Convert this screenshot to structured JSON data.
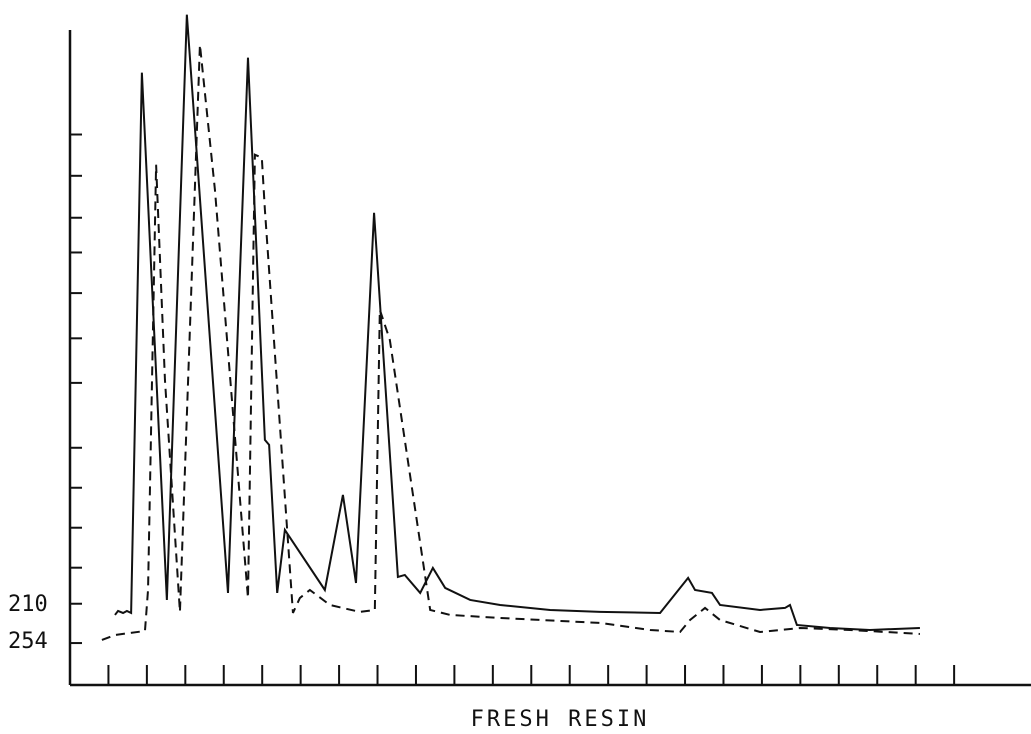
{
  "chart_data": {
    "type": "line",
    "xlabel": "FRESH RESIN",
    "xlim": [
      0,
      25
    ],
    "ylim": [
      0,
      103
    ],
    "xticks": [
      1,
      2,
      3,
      4,
      5,
      6,
      7,
      8,
      9,
      10,
      11,
      12,
      13,
      14,
      15,
      16,
      17,
      18,
      19,
      20,
      21,
      22,
      23
    ],
    "yticks": [
      6.4,
      12.4,
      17.9,
      24.0,
      30.1,
      36.2,
      46.1,
      52.9,
      59.8,
      66.0,
      71.3,
      77.7,
      84.0
    ],
    "series": [
      {
        "name": "210",
        "color": "#111111",
        "dash": false,
        "x": [
          1.17,
          1.25,
          1.38,
          1.48,
          1.59,
          1.87,
          2.52,
          3.04,
          4.11,
          4.63,
          5.07,
          5.18,
          5.39,
          5.59,
          6.63,
          7.1,
          7.44,
          7.91,
          8.53,
          8.71,
          9.11,
          9.44,
          9.76,
          10.41,
          11.19,
          12.49,
          13.79,
          15.35,
          16.08,
          16.26,
          16.7,
          16.91,
          17.95,
          18.6,
          18.73,
          18.91,
          19.77,
          20.81,
          22.11
        ],
        "values": [
          10.69,
          11.3,
          10.99,
          11.3,
          10.99,
          93.44,
          12.98,
          102.29,
          14.05,
          95.73,
          37.4,
          36.64,
          14.05,
          23.66,
          14.5,
          29.01,
          15.57,
          72.06,
          16.49,
          16.79,
          14.05,
          17.86,
          14.81,
          12.98,
          12.21,
          11.45,
          11.15,
          10.99,
          16.34,
          14.5,
          14.05,
          12.21,
          11.45,
          11.76,
          12.21,
          9.16,
          8.7,
          8.4,
          8.7
        ]
      },
      {
        "name": "254",
        "color": "#111111",
        "dash": true,
        "x": [
          0.83,
          1.17,
          1.95,
          2.03,
          2.24,
          2.47,
          2.86,
          3.38,
          3.77,
          4.63,
          4.81,
          4.99,
          5.07,
          5.8,
          5.98,
          6.24,
          6.76,
          7.54,
          7.93,
          8.06,
          8.32,
          9.37,
          9.89,
          11.19,
          13.79,
          15.09,
          15.87,
          16.13,
          16.52,
          16.91,
          17.95,
          18.99,
          20.29,
          22.11
        ],
        "values": [
          6.87,
          7.63,
          8.24,
          14.5,
          79.39,
          46.56,
          11.15,
          97.71,
          75.57,
          13.28,
          80.92,
          80.46,
          72.52,
          10.99,
          13.28,
          14.5,
          12.21,
          11.15,
          11.45,
          57.25,
          52.67,
          11.45,
          10.69,
          10.23,
          9.47,
          8.4,
          8.09,
          9.92,
          11.76,
          9.92,
          8.09,
          8.7,
          8.4,
          7.79
        ]
      }
    ]
  }
}
